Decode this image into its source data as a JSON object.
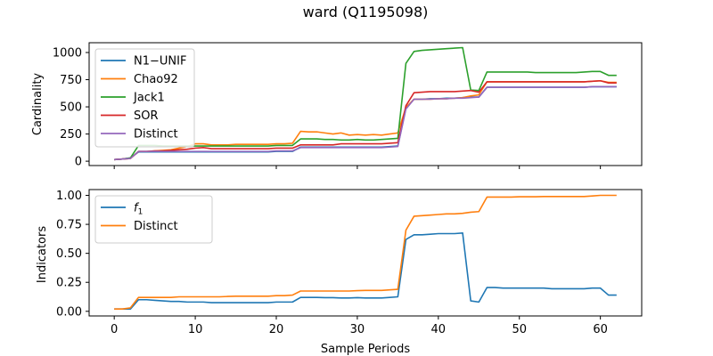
{
  "figure": {
    "title": "ward (Q1195098)"
  },
  "chart_data": [
    {
      "type": "line",
      "title": "ward (Q1195098)",
      "xlabel": "",
      "ylabel": "Cardinality",
      "xlim": [
        -3.1,
        65.1
      ],
      "ylim": [
        -40,
        1090
      ],
      "xticks": [
        0,
        10,
        20,
        30,
        40,
        50,
        60
      ],
      "yticks": [
        0,
        250,
        500,
        750,
        1000
      ],
      "show_xtick_labels": false,
      "legend_position": "upper left",
      "grid": false,
      "x": [
        0,
        1,
        2,
        3,
        4,
        5,
        6,
        7,
        8,
        9,
        10,
        11,
        12,
        13,
        14,
        15,
        16,
        17,
        18,
        19,
        20,
        21,
        22,
        23,
        24,
        25,
        26,
        27,
        28,
        29,
        30,
        31,
        32,
        33,
        34,
        35,
        36,
        37,
        38,
        39,
        40,
        41,
        42,
        43,
        44,
        45,
        46,
        47,
        48,
        49,
        50,
        51,
        52,
        53,
        54,
        55,
        56,
        57,
        58,
        59,
        60,
        61,
        62
      ],
      "series": [
        {
          "name": "N1−UNIF",
          "color": "#1f77b4",
          "values": [
            15,
            20,
            30,
            85,
            85,
            85,
            85,
            85,
            85,
            85,
            85,
            85,
            85,
            85,
            85,
            85,
            85,
            85,
            85,
            85,
            90,
            90,
            90,
            130,
            130,
            130,
            130,
            130,
            130,
            130,
            130,
            130,
            130,
            130,
            135,
            140,
            490,
            570,
            570,
            575,
            575,
            580,
            580,
            585,
            590,
            590,
            680,
            680,
            680,
            680,
            680,
            680,
            680,
            680,
            680,
            680,
            680,
            680,
            680,
            685,
            685,
            685,
            685
          ]
        },
        {
          "name": "Chao92",
          "color": "#ff7f0e",
          "values": [
            15,
            20,
            25,
            90,
            90,
            95,
            100,
            105,
            120,
            135,
            160,
            160,
            150,
            150,
            150,
            155,
            155,
            155,
            155,
            155,
            160,
            160,
            165,
            275,
            270,
            270,
            260,
            250,
            260,
            240,
            245,
            240,
            245,
            240,
            250,
            260,
            495,
            570,
            570,
            570,
            575,
            575,
            580,
            585,
            600,
            610,
            730,
            730,
            730,
            730,
            730,
            730,
            730,
            730,
            730,
            730,
            730,
            730,
            730,
            735,
            740,
            725,
            725
          ]
        },
        {
          "name": "Jack1",
          "color": "#2ca02c",
          "values": [
            15,
            20,
            30,
            145,
            145,
            145,
            140,
            140,
            140,
            140,
            140,
            140,
            140,
            140,
            140,
            140,
            140,
            140,
            140,
            140,
            145,
            145,
            145,
            205,
            205,
            205,
            200,
            200,
            195,
            195,
            200,
            195,
            195,
            200,
            205,
            210,
            900,
            1010,
            1020,
            1025,
            1030,
            1035,
            1040,
            1045,
            655,
            650,
            820,
            820,
            820,
            820,
            820,
            820,
            815,
            815,
            815,
            815,
            815,
            815,
            820,
            825,
            825,
            790,
            790
          ]
        },
        {
          "name": "SOR",
          "color": "#d62728",
          "values": [
            15,
            20,
            25,
            90,
            90,
            95,
            95,
            100,
            105,
            110,
            120,
            125,
            115,
            115,
            115,
            115,
            115,
            115,
            115,
            115,
            120,
            120,
            120,
            150,
            150,
            150,
            150,
            150,
            160,
            160,
            160,
            160,
            160,
            160,
            165,
            170,
            510,
            630,
            635,
            640,
            640,
            640,
            640,
            645,
            650,
            635,
            730,
            730,
            730,
            730,
            730,
            730,
            730,
            730,
            730,
            730,
            730,
            730,
            730,
            735,
            740,
            720,
            720
          ]
        },
        {
          "name": "Distinct",
          "color": "#9467bd",
          "values": [
            15,
            20,
            25,
            90,
            90,
            90,
            90,
            90,
            90,
            90,
            90,
            90,
            90,
            90,
            90,
            90,
            90,
            90,
            90,
            90,
            95,
            95,
            95,
            125,
            125,
            125,
            125,
            125,
            125,
            125,
            125,
            125,
            125,
            125,
            130,
            135,
            480,
            570,
            570,
            570,
            575,
            575,
            580,
            580,
            585,
            590,
            680,
            680,
            680,
            680,
            680,
            680,
            680,
            680,
            680,
            680,
            680,
            680,
            680,
            685,
            685,
            685,
            685
          ]
        }
      ]
    },
    {
      "type": "line",
      "title": "",
      "xlabel": "Sample Periods",
      "ylabel": "Indicators",
      "xlim": [
        -3.1,
        65.1
      ],
      "ylim": [
        -0.04,
        1.05
      ],
      "xticks": [
        0,
        10,
        20,
        30,
        40,
        50,
        60
      ],
      "yticks": [
        0.0,
        0.25,
        0.5,
        0.75,
        1.0
      ],
      "ytick_labels": [
        "0.00",
        "0.25",
        "0.50",
        "0.75",
        "1.00"
      ],
      "show_xtick_labels": true,
      "legend_position": "upper left",
      "grid": false,
      "x": [
        0,
        1,
        2,
        3,
        4,
        5,
        6,
        7,
        8,
        9,
        10,
        11,
        12,
        13,
        14,
        15,
        16,
        17,
        18,
        19,
        20,
        21,
        22,
        23,
        24,
        25,
        26,
        27,
        28,
        29,
        30,
        31,
        32,
        33,
        34,
        35,
        36,
        37,
        38,
        39,
        40,
        41,
        42,
        43,
        44,
        45,
        46,
        47,
        48,
        49,
        50,
        51,
        52,
        53,
        54,
        55,
        56,
        57,
        58,
        59,
        60,
        61,
        62
      ],
      "series": [
        {
          "name": "f1",
          "label_main": "f",
          "label_sub": "1",
          "color": "#1f77b4",
          "values": [
            0.02,
            0.02,
            0.02,
            0.1,
            0.1,
            0.095,
            0.09,
            0.085,
            0.085,
            0.08,
            0.08,
            0.08,
            0.075,
            0.075,
            0.075,
            0.075,
            0.075,
            0.075,
            0.075,
            0.075,
            0.08,
            0.08,
            0.08,
            0.12,
            0.12,
            0.12,
            0.118,
            0.118,
            0.115,
            0.115,
            0.118,
            0.115,
            0.115,
            0.115,
            0.12,
            0.125,
            0.62,
            0.66,
            0.66,
            0.665,
            0.67,
            0.67,
            0.67,
            0.675,
            0.09,
            0.08,
            0.205,
            0.205,
            0.2,
            0.2,
            0.2,
            0.2,
            0.2,
            0.2,
            0.195,
            0.195,
            0.195,
            0.195,
            0.195,
            0.2,
            0.2,
            0.14,
            0.14
          ]
        },
        {
          "name": "Distinct",
          "color": "#ff7f0e",
          "values": [
            0.02,
            0.02,
            0.03,
            0.12,
            0.12,
            0.12,
            0.12,
            0.12,
            0.125,
            0.125,
            0.125,
            0.125,
            0.125,
            0.125,
            0.128,
            0.13,
            0.13,
            0.13,
            0.13,
            0.13,
            0.135,
            0.135,
            0.14,
            0.175,
            0.175,
            0.175,
            0.175,
            0.175,
            0.175,
            0.175,
            0.178,
            0.18,
            0.18,
            0.18,
            0.185,
            0.19,
            0.7,
            0.82,
            0.825,
            0.83,
            0.835,
            0.84,
            0.84,
            0.845,
            0.855,
            0.86,
            0.985,
            0.985,
            0.985,
            0.985,
            0.988,
            0.988,
            0.988,
            0.99,
            0.99,
            0.99,
            0.99,
            0.99,
            0.99,
            0.995,
            1.0,
            1.0,
            1.0
          ]
        }
      ]
    }
  ]
}
